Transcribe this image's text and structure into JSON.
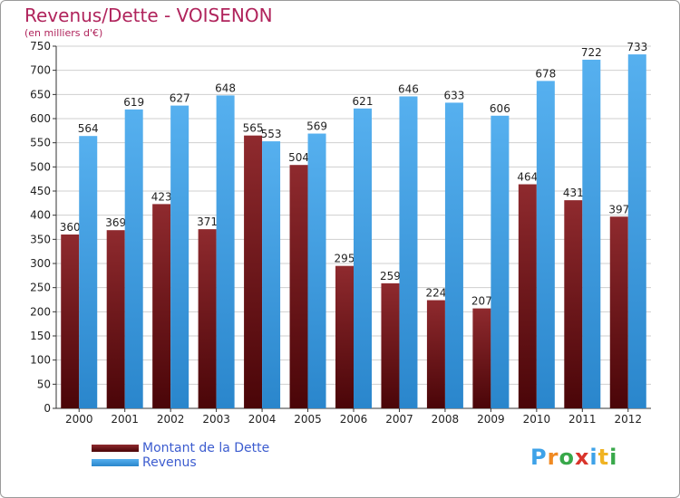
{
  "title": "Revenus/Dette - VOISENON",
  "subtitle": "(en milliers d'€)",
  "logo": {
    "text": "Proxiti",
    "letters": [
      {
        "ch": "P",
        "color": "#3ea2e8"
      },
      {
        "ch": "r",
        "color": "#f08a23"
      },
      {
        "ch": "o",
        "color": "#38a84a"
      },
      {
        "ch": "x",
        "color": "#d9342b"
      },
      {
        "ch": "i",
        "color": "#3ea2e8"
      },
      {
        "ch": "t",
        "color": "#f0b323"
      },
      {
        "ch": "i",
        "color": "#38a84a"
      }
    ]
  },
  "colors": {
    "dette": "#7a1a1e",
    "revenus": "#3d9ee4",
    "grid": "#cfcfcf",
    "axis": "#333333"
  },
  "chart_data": {
    "type": "bar",
    "title": "Revenus/Dette - VOISENON",
    "ylabel": "(en milliers d'€)",
    "xlabel": "",
    "categories": [
      "2000",
      "2001",
      "2002",
      "2003",
      "2004",
      "2005",
      "2006",
      "2007",
      "2008",
      "2009",
      "2010",
      "2011",
      "2012"
    ],
    "series": [
      {
        "name": "Montant de la Dette",
        "values": [
          360,
          369,
          423,
          371,
          565,
          504,
          295,
          259,
          224,
          207,
          464,
          431,
          397
        ]
      },
      {
        "name": "Revenus",
        "values": [
          564,
          619,
          627,
          648,
          553,
          569,
          621,
          646,
          633,
          606,
          678,
          722,
          733
        ]
      }
    ],
    "ylim": [
      0,
      750
    ],
    "yticks": [
      0,
      50,
      100,
      150,
      200,
      250,
      300,
      350,
      400,
      450,
      500,
      550,
      600,
      650,
      700,
      750
    ],
    "grid": true,
    "legend": "bottom-left"
  }
}
